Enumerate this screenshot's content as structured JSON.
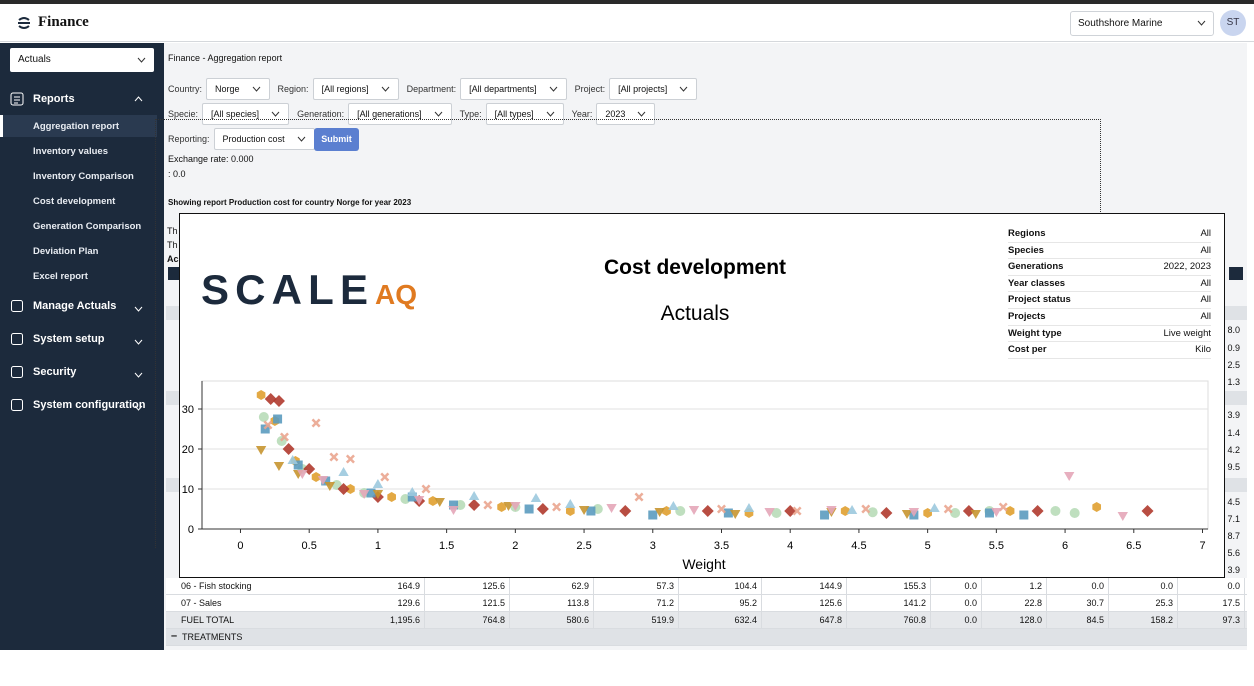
{
  "header": {
    "brand": "Finance",
    "org_select": "Southshore Marine",
    "avatar": "ST"
  },
  "sidebar": {
    "select": "Actuals",
    "reports": "Reports",
    "report_items": [
      "Aggregation report",
      "Inventory values",
      "Inventory Comparison",
      "Cost development",
      "Generation Comparison",
      "Deviation Plan",
      "Excel report"
    ],
    "menu": [
      "Manage Actuals",
      "System setup",
      "Security",
      "System configuration"
    ]
  },
  "page": {
    "title": "Finance - Aggregation report",
    "filters": [
      [
        {
          "label": "Country:",
          "value": "Norge"
        },
        {
          "label": "Region:",
          "value": "[All regions]"
        },
        {
          "label": "Department:",
          "value": "[All departments]"
        },
        {
          "label": "Project:",
          "value": "[All projects]"
        }
      ],
      [
        {
          "label": "Specie:",
          "value": "[All species]"
        },
        {
          "label": "Generation:",
          "value": "[All generations]"
        },
        {
          "label": "Type:",
          "value": "[All types]"
        },
        {
          "label": "Year:",
          "value": "2023"
        }
      ],
      [
        {
          "label": "Reporting:",
          "value": "Production cost"
        }
      ]
    ],
    "submit": "Submit",
    "exchange_rate": "Exchange rate: 0.000",
    "rate_line": ": 0.0",
    "showing": "Showing report Production cost for country Norge for year 2023",
    "hidden_fragments": [
      "Th",
      "Th",
      "Ac"
    ],
    "edge_values": [
      "8.0",
      "0.9",
      "2.5",
      "1.3",
      "3.9",
      "1.4",
      "4.2",
      "9.5",
      "4.5",
      "7.1",
      "8.7",
      "5.6",
      "3.9"
    ]
  },
  "modal": {
    "logo": {
      "scale": "SCALE",
      "aq": "AQ"
    },
    "info": [
      [
        "Regions",
        "All"
      ],
      [
        "Species",
        "All"
      ],
      [
        "Generations",
        "2022, 2023"
      ],
      [
        "Year classes",
        "All"
      ],
      [
        "Project status",
        "All"
      ],
      [
        "Projects",
        "All"
      ],
      [
        "Weight type",
        "Live weight"
      ],
      [
        "Cost per",
        "Kilo"
      ]
    ]
  },
  "chart_data": {
    "type": "scatter",
    "title": "Cost development",
    "subtitle": "Actuals",
    "x_label": "Weight",
    "xlim": [
      -0.28,
      7.04
    ],
    "xticks": [
      0,
      0.5,
      1,
      1.5,
      2,
      2.5,
      3,
      3.5,
      4,
      4.5,
      5,
      5.5,
      6,
      6.5,
      7
    ],
    "ylim": [
      0,
      37
    ],
    "yticks": [
      0,
      10,
      20,
      30
    ],
    "grid": true,
    "series": [
      {
        "color": "#e0a030",
        "marker": "hexagon",
        "x": [
          0.15,
          0.25,
          0.4,
          0.55,
          0.8,
          1.1,
          1.4,
          1.9,
          2.4,
          3.1,
          3.7,
          4.4,
          5.0,
          5.6,
          6.23
        ],
        "values": [
          33.5,
          27,
          17,
          13,
          10,
          8,
          7,
          5.5,
          4.5,
          4.5,
          4,
          4.5,
          4,
          4.5,
          5.5
        ]
      },
      {
        "color": "#b8dcb8",
        "marker": "circle",
        "x": [
          0.17,
          0.3,
          0.45,
          0.7,
          0.9,
          1.2,
          1.6,
          2.0,
          2.6,
          3.2,
          3.9,
          4.6,
          5.2,
          5.45,
          5.93,
          6.07
        ],
        "values": [
          28,
          22,
          15,
          11,
          9,
          7.5,
          6,
          5.5,
          5,
          4.5,
          4,
          4.2,
          4,
          4.5,
          4.5,
          4
        ]
      },
      {
        "color": "#b03a2e",
        "marker": "diamond",
        "x": [
          0.22,
          0.28,
          0.35,
          0.5,
          0.75,
          1.0,
          1.3,
          1.7,
          2.2,
          2.8,
          3.4,
          4.0,
          4.7,
          5.3,
          5.8,
          6.6
        ],
        "values": [
          32.5,
          32,
          20,
          15,
          10,
          8,
          7,
          6,
          5,
          4.5,
          4.5,
          4.5,
          4,
          4.5,
          4.5,
          4.5
        ]
      },
      {
        "color": "#5b9bbf",
        "marker": "square",
        "x": [
          0.18,
          0.27,
          0.42,
          0.62,
          0.95,
          1.25,
          1.55,
          2.1,
          2.55,
          3.0,
          3.55,
          4.25,
          4.9,
          5.45,
          5.7
        ],
        "values": [
          25,
          27.5,
          16,
          12,
          9,
          8,
          6,
          5,
          4.5,
          3.5,
          4,
          3.5,
          3.5,
          4,
          3.5
        ]
      },
      {
        "color": "#eaa58f",
        "marker": "cross",
        "x": [
          0.2,
          0.32,
          0.55,
          0.68,
          0.8,
          1.05,
          1.35,
          1.8,
          2.3,
          2.9,
          3.5,
          4.05,
          4.55,
          5.15,
          5.55
        ],
        "values": [
          26,
          23,
          26.5,
          18,
          17.5,
          13,
          10,
          6,
          5.5,
          8,
          5,
          4.5,
          5,
          5,
          5.5
        ]
      },
      {
        "color": "#c79530",
        "marker": "triangle-down",
        "x": [
          0.15,
          0.28,
          0.42,
          0.65,
          1.0,
          1.45,
          1.95,
          2.5,
          3.05,
          3.6,
          4.3,
          4.85,
          5.35
        ],
        "values": [
          20,
          16,
          14,
          11,
          9,
          7,
          6,
          5,
          4.5,
          4,
          4.5,
          4,
          4
        ]
      },
      {
        "color": "#e4a6b8",
        "marker": "triangle-down",
        "x": [
          0.45,
          0.6,
          0.9,
          1.3,
          1.55,
          2.0,
          2.7,
          3.3,
          3.85,
          4.3,
          4.9,
          5.5,
          6.03,
          6.42
        ],
        "values": [
          14,
          12.5,
          9,
          7.5,
          5,
          6,
          5.5,
          5,
          4.5,
          5,
          4.5,
          4.5,
          13.5,
          3.5
        ]
      },
      {
        "color": "#9cc9de",
        "marker": "triangle-up",
        "x": [
          0.38,
          0.75,
          1.0,
          1.25,
          1.7,
          2.15,
          2.4,
          3.15,
          3.7,
          4.45,
          5.05
        ],
        "values": [
          17,
          14,
          11,
          9,
          8,
          7.5,
          6,
          5.5,
          5,
          4.5,
          5
        ]
      }
    ]
  },
  "table": {
    "rows": [
      [
        "06 - Fish stocking",
        "164.9",
        "125.6",
        "62.9",
        "57.3",
        "104.4",
        "144.9",
        "155.3",
        "0.0",
        "1.2",
        "0.0",
        "0.0",
        "0.0"
      ],
      [
        "07 - Sales",
        "129.6",
        "121.5",
        "113.8",
        "71.2",
        "95.2",
        "125.6",
        "141.2",
        "0.0",
        "22.8",
        "30.7",
        "25.3",
        "17.5"
      ],
      [
        "FUEL TOTAL",
        "1,195.6",
        "764.8",
        "580.6",
        "519.9",
        "632.4",
        "647.8",
        "760.8",
        "0.0",
        "128.0",
        "84.5",
        "158.2",
        "97.3"
      ]
    ],
    "section": "TREATMENTS"
  }
}
